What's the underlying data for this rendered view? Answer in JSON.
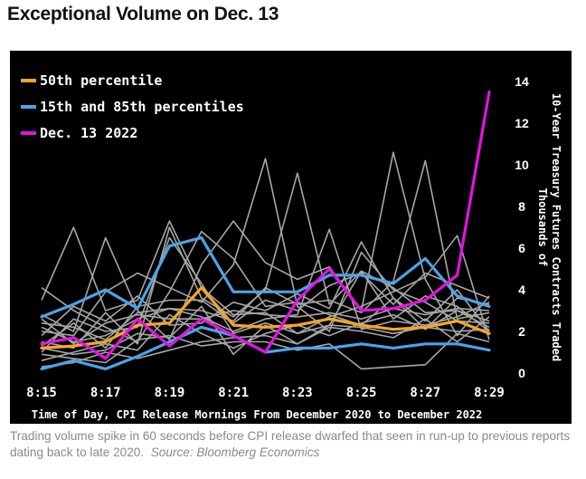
{
  "page": {
    "title": "Exceptional Volume on Dec. 13",
    "caption": "Trading volume spike in 60 seconds before CPI release dwarfed that seen in run-up to previous reports dating back to late 2020.",
    "source_label": "Source:",
    "source": "Bloomberg Economics"
  },
  "colors": {
    "background": "#000000",
    "gray_lines": "#a6a6a6",
    "p50": "#f5a623",
    "p15_85": "#4aa3e8",
    "dec13": "#e313e3",
    "text": "#ffffff"
  },
  "chart_data": {
    "type": "line",
    "title": "Exceptional Volume on Dec. 13",
    "xlabel": "Time of Day, CPI Release Mornings From December 2020 to December 2022",
    "ylabel": "Thousands of 10-Year Treasury Futures Contracts Traded",
    "y_axis_side": "right",
    "ylim": [
      0,
      14
    ],
    "yticks": [
      0,
      2,
      4,
      6,
      8,
      10,
      12,
      14
    ],
    "x": [
      "8:15",
      "8:16",
      "8:17",
      "8:18",
      "8:19",
      "8:20",
      "8:21",
      "8:22",
      "8:23",
      "8:24",
      "8:25",
      "8:26",
      "8:27",
      "8:28",
      "8:29"
    ],
    "xtick_labels": [
      "8:15",
      "8:17",
      "8:19",
      "8:21",
      "8:23",
      "8:25",
      "8:27",
      "8:29"
    ],
    "grid": false,
    "legend": {
      "placement": "top-left",
      "entries": [
        "50th percentile",
        "15th and 85th percentiles",
        "Dec. 13 2022"
      ]
    },
    "series": [
      {
        "name": "50th percentile",
        "color": "#f5a623",
        "values": [
          1.2,
          1.3,
          1.5,
          2.3,
          2.4,
          4.1,
          2.3,
          2.2,
          2.3,
          2.6,
          2.3,
          2.1,
          2.2,
          2.5,
          1.9
        ]
      },
      {
        "name": "15th and 85th percentiles",
        "color": "#4aa3e8",
        "values": [
          2.7,
          3.3,
          4.0,
          3.1,
          6.1,
          6.5,
          3.9,
          3.9,
          3.9,
          4.7,
          4.7,
          4.3,
          5.5,
          3.7,
          3.2
        ]
      },
      {
        "name": "15th and 85th percentiles",
        "color": "#4aa3e8",
        "values": [
          0.2,
          0.6,
          0.2,
          0.8,
          1.5,
          2.2,
          1.8,
          1.0,
          1.2,
          1.2,
          1.4,
          1.2,
          1.4,
          1.4,
          1.1
        ]
      },
      {
        "name": "Dec. 13 2022",
        "color": "#e313e3",
        "values": [
          1.4,
          1.7,
          0.7,
          2.6,
          1.3,
          2.6,
          1.8,
          1.0,
          3.5,
          5.0,
          3.0,
          3.1,
          3.5,
          4.7,
          13.5
        ]
      }
    ],
    "background_lines": [
      [
        4.1,
        3.0,
        2.2,
        1.5,
        3.9,
        6.8,
        5.5,
        3.2,
        3.4,
        2.8,
        2.3,
        3.6,
        2.5,
        4.0,
        2.0
      ],
      [
        3.5,
        7.0,
        3.0,
        3.5,
        7.3,
        4.1,
        2.8,
        2.9,
        1.9,
        2.3,
        4.9,
        2.6,
        3.7,
        3.2,
        2.0
      ],
      [
        2.8,
        2.0,
        6.5,
        3.0,
        1.6,
        5.2,
        7.3,
        5.3,
        4.5,
        5.1,
        3.0,
        10.6,
        4.5,
        1.8,
        3.7
      ],
      [
        2.0,
        1.8,
        3.9,
        4.8,
        4.1,
        3.4,
        5.2,
        10.3,
        3.2,
        2.0,
        5.8,
        4.0,
        3.4,
        2.5,
        2.4
      ],
      [
        1.5,
        1.2,
        2.9,
        1.4,
        7.0,
        3.6,
        2.7,
        4.0,
        9.6,
        3.3,
        4.9,
        4.1,
        2.9,
        3.0,
        2.5
      ],
      [
        1.8,
        3.2,
        2.5,
        3.7,
        2.3,
        2.4,
        3.4,
        3.0,
        3.8,
        3.1,
        6.3,
        3.6,
        2.1,
        3.6,
        3.3
      ],
      [
        2.4,
        2.2,
        1.6,
        2.9,
        3.1,
        3.0,
        2.5,
        4.1,
        3.3,
        3.5,
        2.9,
        4.4,
        10.2,
        2.6,
        2.9
      ],
      [
        1.0,
        2.6,
        2.0,
        2.2,
        6.5,
        4.3,
        1.9,
        2.4,
        1.9,
        2.7,
        3.2,
        3.9,
        4.6,
        6.6,
        1.6
      ],
      [
        0.6,
        1.0,
        1.4,
        1.1,
        2.8,
        1.9,
        1.2,
        1.9,
        2.3,
        1.8,
        2.4,
        2.8,
        2.1,
        3.0,
        2.2
      ],
      [
        1.2,
        0.9,
        1.1,
        1.9,
        1.7,
        3.2,
        0.9,
        2.3,
        1.4,
        2.2,
        2.0,
        1.7,
        2.6,
        1.5,
        2.7
      ],
      [
        2.2,
        1.5,
        1.8,
        2.6,
        3.1,
        2.7,
        2.0,
        2.6,
        2.8,
        6.9,
        2.1,
        2.5,
        2.3,
        2.7,
        3.4
      ],
      [
        0.3,
        0.5,
        1.0,
        0.7,
        1.1,
        1.5,
        1.7,
        1.8,
        1.4,
        2.3,
        2.2,
        1.9,
        2.2,
        2.0,
        2.1
      ],
      [
        1.3,
        2.4,
        1.2,
        3.2,
        3.5,
        3.5,
        2.4,
        3.5,
        3.0,
        4.2,
        4.8,
        3.3,
        4.8,
        4.2,
        3.6
      ],
      [
        2.6,
        1.4,
        2.4,
        2.8,
        2.6,
        2.6,
        3.0,
        2.8,
        2.7,
        2.9,
        2.6,
        3.1,
        2.8,
        3.1,
        3.0
      ],
      [
        0.9,
        0.7,
        0.5,
        1.6,
        1.8,
        1.3,
        1.5,
        1.5,
        1.1,
        1.4,
        0.2,
        0.3,
        0.4,
        1.9,
        1.5
      ]
    ]
  }
}
